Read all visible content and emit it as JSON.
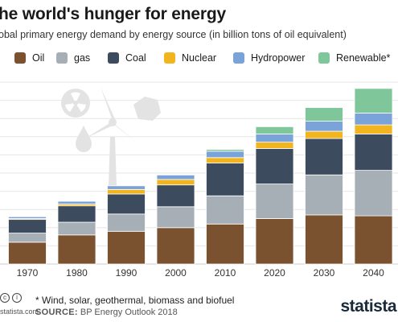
{
  "header": {
    "title": "he world's hunger for energy",
    "subtitle": "obal primary energy demand by energy source (in billion tons of oil equivalent)"
  },
  "legend": [
    {
      "label": "Oil",
      "color": "#7a5230"
    },
    {
      "label": "gas",
      "color": "#a7afb6"
    },
    {
      "label": "Coal",
      "color": "#3c4b5e"
    },
    {
      "label": "Nuclear",
      "color": "#f3b51f"
    },
    {
      "label": "Hydropower",
      "color": "#7aa3d9"
    },
    {
      "label": "Renewable*",
      "color": "#7fc79a"
    }
  ],
  "chart_data": {
    "type": "bar",
    "stacked": true,
    "categories": [
      "1970",
      "1980",
      "1990",
      "2000",
      "2010",
      "2020",
      "2030",
      "2040"
    ],
    "ylim": [
      0,
      20
    ],
    "grid": true,
    "legend_position": "top",
    "series": [
      {
        "name": "Oil",
        "color": "#7a5230",
        "values": [
          2.4,
          3.2,
          3.6,
          4.0,
          4.4,
          5.0,
          5.4,
          5.3
        ]
      },
      {
        "name": "gas",
        "color": "#a7afb6",
        "values": [
          1.0,
          1.4,
          1.9,
          2.3,
          3.1,
          3.8,
          4.4,
          5.0
        ]
      },
      {
        "name": "Coal",
        "color": "#3c4b5e",
        "values": [
          1.5,
          1.8,
          2.2,
          2.4,
          3.6,
          3.9,
          4.0,
          4.0
        ]
      },
      {
        "name": "Nuclear",
        "color": "#f3b51f",
        "values": [
          0.1,
          0.2,
          0.5,
          0.6,
          0.6,
          0.7,
          0.8,
          1.0
        ]
      },
      {
        "name": "Hydropower",
        "color": "#7aa3d9",
        "values": [
          0.2,
          0.3,
          0.4,
          0.5,
          0.7,
          0.9,
          1.1,
          1.3
        ]
      },
      {
        "name": "Renewable*",
        "color": "#7fc79a",
        "values": [
          0.0,
          0.0,
          0.0,
          0.05,
          0.2,
          0.8,
          1.5,
          2.7
        ]
      }
    ]
  },
  "footer": {
    "footnote": "* Wind, solar, geothermal, biomass and biofuel",
    "site": "statista.com",
    "source_key": "SOURCE:",
    "source_value": "BP Energy Outlook 2018",
    "brand": "statista"
  }
}
